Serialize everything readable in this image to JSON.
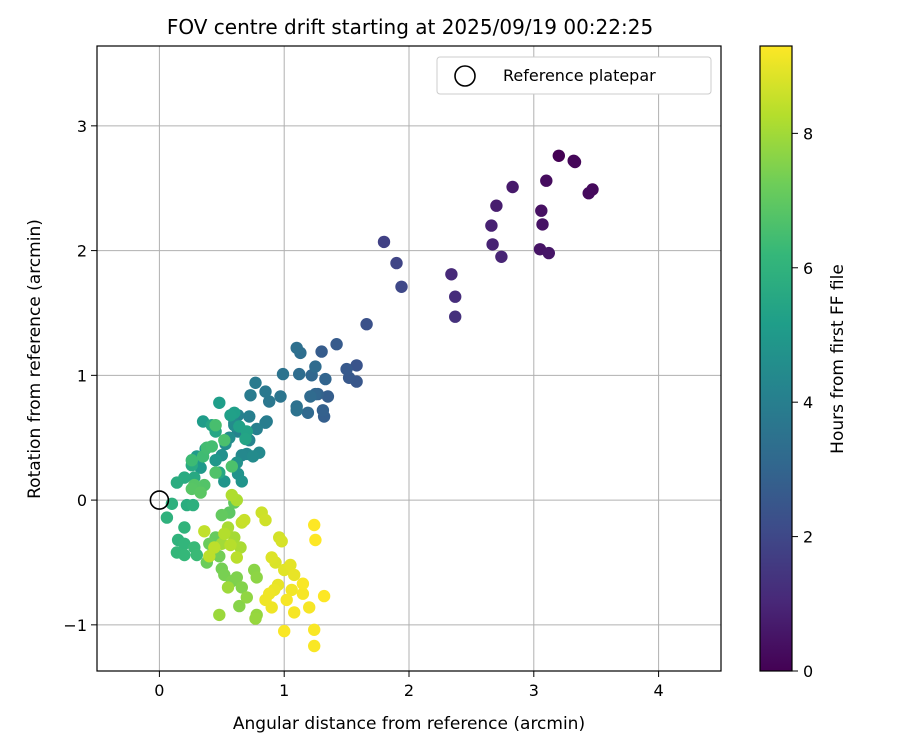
{
  "chart_data": {
    "type": "scatter",
    "title": "FOV centre drift starting at 2025/09/19 00:22:25",
    "xlabel": "Angular distance from reference (arcmin)",
    "ylabel": "Rotation from reference (arcmin)",
    "xlim": [
      -0.5,
      4.5
    ],
    "ylim": [
      -1.37,
      3.64
    ],
    "xticks": [
      0,
      1,
      2,
      3,
      4
    ],
    "yticks": [
      -1,
      0,
      1,
      2,
      3
    ],
    "grid": true,
    "legend": {
      "label": "Reference platepar",
      "position": "top-right"
    },
    "reference_point": {
      "x": 0,
      "y": 0
    },
    "colorbar": {
      "label": "Hours from first FF file",
      "min": 0,
      "max": 9.3,
      "ticks": [
        0,
        2,
        4,
        6,
        8
      ],
      "colormap": "viridis"
    },
    "point_fields": [
      "x",
      "y",
      "hours"
    ],
    "points": [
      [
        3.2,
        2.76,
        0.0
      ],
      [
        3.32,
        2.72,
        0.1
      ],
      [
        3.33,
        2.71,
        0.15
      ],
      [
        3.47,
        2.49,
        0.2
      ],
      [
        3.44,
        2.46,
        0.25
      ],
      [
        3.1,
        2.56,
        0.3
      ],
      [
        3.06,
        2.32,
        0.4
      ],
      [
        3.07,
        2.21,
        0.45
      ],
      [
        3.05,
        2.01,
        0.5
      ],
      [
        3.12,
        1.98,
        0.55
      ],
      [
        2.83,
        2.51,
        0.65
      ],
      [
        2.7,
        2.36,
        0.75
      ],
      [
        2.66,
        2.2,
        0.85
      ],
      [
        2.67,
        2.05,
        0.9
      ],
      [
        2.74,
        1.95,
        0.95
      ],
      [
        2.34,
        1.81,
        1.1
      ],
      [
        2.37,
        1.63,
        1.2
      ],
      [
        2.37,
        1.47,
        1.3
      ],
      [
        1.8,
        2.07,
        1.8
      ],
      [
        1.9,
        1.9,
        1.9
      ],
      [
        1.94,
        1.71,
        2.0
      ],
      [
        1.66,
        1.41,
        2.3
      ],
      [
        1.58,
        1.08,
        2.4
      ],
      [
        1.58,
        0.95,
        2.5
      ],
      [
        1.52,
        0.98,
        2.55
      ],
      [
        1.5,
        1.05,
        2.6
      ],
      [
        1.42,
        1.25,
        2.65
      ],
      [
        1.3,
        1.19,
        2.7
      ],
      [
        1.35,
        0.83,
        2.75
      ],
      [
        1.32,
        0.67,
        2.8
      ],
      [
        1.31,
        0.72,
        2.85
      ],
      [
        1.27,
        0.85,
        2.9
      ],
      [
        1.33,
        0.97,
        3.0
      ],
      [
        1.25,
        0.85,
        3.05
      ],
      [
        1.22,
        1.0,
        3.1
      ],
      [
        1.19,
        0.7,
        3.15
      ],
      [
        1.21,
        0.83,
        3.2
      ],
      [
        1.25,
        1.07,
        3.25
      ],
      [
        1.12,
        1.01,
        3.3
      ],
      [
        1.13,
        1.18,
        3.35
      ],
      [
        1.1,
        1.22,
        3.4
      ],
      [
        1.1,
        0.75,
        3.45
      ],
      [
        1.1,
        0.72,
        3.5
      ],
      [
        0.99,
        1.01,
        3.55
      ],
      [
        0.97,
        0.83,
        3.6
      ],
      [
        0.88,
        0.79,
        3.7
      ],
      [
        0.85,
        0.87,
        3.75
      ],
      [
        0.77,
        0.94,
        3.8
      ],
      [
        0.73,
        0.84,
        3.85
      ],
      [
        0.86,
        0.63,
        3.9
      ],
      [
        0.85,
        0.62,
        3.95
      ],
      [
        0.72,
        0.67,
        4.0
      ],
      [
        0.78,
        0.57,
        4.05
      ],
      [
        0.63,
        0.68,
        4.1
      ],
      [
        0.63,
        0.55,
        4.15
      ],
      [
        0.72,
        0.48,
        4.2
      ],
      [
        0.6,
        0.62,
        4.25
      ],
      [
        0.7,
        0.37,
        4.3
      ],
      [
        0.66,
        0.36,
        4.35
      ],
      [
        0.8,
        0.38,
        4.4
      ],
      [
        0.75,
        0.35,
        4.45
      ],
      [
        0.6,
        0.6,
        4.5
      ],
      [
        0.56,
        0.5,
        4.55
      ],
      [
        0.53,
        0.45,
        4.6
      ],
      [
        0.5,
        0.36,
        4.65
      ],
      [
        0.62,
        0.3,
        4.7
      ],
      [
        0.63,
        0.21,
        4.75
      ],
      [
        0.66,
        0.15,
        4.8
      ],
      [
        0.52,
        0.15,
        4.85
      ],
      [
        0.45,
        0.32,
        4.9
      ],
      [
        0.37,
        0.41,
        4.95
      ],
      [
        0.33,
        0.26,
        5.0
      ],
      [
        0.3,
        0.35,
        5.05
      ],
      [
        0.35,
        0.63,
        5.1
      ],
      [
        0.48,
        0.78,
        5.15
      ],
      [
        0.6,
        0.7,
        5.2
      ],
      [
        0.57,
        0.68,
        5.25
      ],
      [
        0.64,
        0.59,
        5.3
      ],
      [
        0.7,
        0.55,
        5.35
      ],
      [
        0.69,
        0.49,
        5.4
      ],
      [
        0.42,
        0.6,
        5.45
      ],
      [
        0.45,
        0.55,
        5.5
      ],
      [
        0.48,
        0.22,
        5.55
      ],
      [
        0.28,
        0.18,
        5.6
      ],
      [
        0.26,
        0.28,
        5.65
      ],
      [
        0.2,
        0.18,
        5.7
      ],
      [
        0.14,
        0.14,
        5.75
      ],
      [
        0.22,
        -0.04,
        5.8
      ],
      [
        0.27,
        -0.04,
        5.85
      ],
      [
        0.1,
        -0.03,
        5.9
      ],
      [
        0.06,
        -0.14,
        5.95
      ],
      [
        0.15,
        -0.32,
        6.0
      ],
      [
        0.2,
        -0.22,
        6.05
      ],
      [
        0.2,
        -0.35,
        6.1
      ],
      [
        0.14,
        -0.42,
        6.15
      ],
      [
        0.2,
        -0.44,
        6.2
      ],
      [
        0.28,
        -0.38,
        6.25
      ],
      [
        0.3,
        -0.44,
        6.3
      ],
      [
        0.26,
        0.32,
        6.35
      ],
      [
        0.35,
        0.35,
        6.4
      ],
      [
        0.38,
        0.42,
        6.45
      ],
      [
        0.42,
        0.43,
        6.5
      ],
      [
        0.45,
        0.6,
        6.55
      ],
      [
        0.52,
        0.48,
        6.6
      ],
      [
        0.58,
        0.27,
        6.65
      ],
      [
        0.45,
        0.22,
        6.7
      ],
      [
        0.36,
        0.12,
        6.75
      ],
      [
        0.28,
        0.12,
        6.8
      ],
      [
        0.26,
        0.09,
        6.85
      ],
      [
        0.33,
        0.06,
        6.9
      ],
      [
        0.56,
        -0.1,
        6.95
      ],
      [
        0.6,
        -0.02,
        7.0
      ],
      [
        0.5,
        -0.12,
        7.05
      ],
      [
        0.45,
        -0.3,
        7.1
      ],
      [
        0.4,
        -0.35,
        7.15
      ],
      [
        0.38,
        -0.5,
        7.2
      ],
      [
        0.43,
        -0.42,
        7.25
      ],
      [
        0.48,
        -0.45,
        7.3
      ],
      [
        0.5,
        -0.55,
        7.35
      ],
      [
        0.52,
        -0.6,
        7.4
      ],
      [
        0.58,
        -0.65,
        7.45
      ],
      [
        0.62,
        -0.62,
        7.5
      ],
      [
        0.66,
        -0.7,
        7.55
      ],
      [
        0.64,
        -0.85,
        7.6
      ],
      [
        0.76,
        -0.56,
        7.65
      ],
      [
        0.78,
        -0.62,
        7.7
      ],
      [
        0.7,
        -0.78,
        7.75
      ],
      [
        0.78,
        -0.92,
        7.8
      ],
      [
        0.77,
        -0.95,
        7.85
      ],
      [
        0.48,
        -0.92,
        7.9
      ],
      [
        0.55,
        -0.7,
        7.95
      ],
      [
        0.5,
        -0.35,
        8.0
      ],
      [
        0.6,
        -0.3,
        8.05
      ],
      [
        0.65,
        -0.38,
        8.1
      ],
      [
        0.55,
        -0.22,
        8.1
      ],
      [
        0.62,
        0.0,
        8.15
      ],
      [
        0.58,
        0.04,
        8.2
      ],
      [
        0.52,
        -0.27,
        8.25
      ],
      [
        0.57,
        -0.36,
        8.3
      ],
      [
        0.62,
        -0.46,
        8.35
      ],
      [
        0.44,
        -0.38,
        8.4
      ],
      [
        0.4,
        -0.45,
        8.4
      ],
      [
        0.36,
        -0.25,
        8.45
      ],
      [
        0.66,
        -0.18,
        8.5
      ],
      [
        0.68,
        -0.16,
        8.55
      ],
      [
        0.82,
        -0.1,
        8.6
      ],
      [
        0.85,
        -0.16,
        8.65
      ],
      [
        0.96,
        -0.3,
        8.7
      ],
      [
        0.98,
        -0.33,
        8.75
      ],
      [
        0.93,
        -0.5,
        8.8
      ],
      [
        0.9,
        -0.46,
        8.85
      ],
      [
        1.0,
        -0.56,
        8.9
      ],
      [
        1.05,
        -0.52,
        8.95
      ],
      [
        1.08,
        -0.6,
        9.0
      ],
      [
        0.95,
        -0.68,
        9.0
      ],
      [
        0.92,
        -0.72,
        9.05
      ],
      [
        0.88,
        -0.75,
        9.1
      ],
      [
        0.85,
        -0.8,
        9.1
      ],
      [
        0.9,
        -0.86,
        9.1
      ],
      [
        1.06,
        -0.72,
        9.15
      ],
      [
        1.15,
        -0.75,
        9.2
      ],
      [
        1.2,
        -0.86,
        9.2
      ],
      [
        1.08,
        -0.9,
        9.2
      ],
      [
        1.0,
        -1.05,
        9.25
      ],
      [
        1.24,
        -1.04,
        9.25
      ],
      [
        1.24,
        -1.17,
        9.25
      ],
      [
        1.32,
        -0.77,
        9.3
      ],
      [
        1.25,
        -0.32,
        9.3
      ],
      [
        1.24,
        -0.2,
        9.3
      ],
      [
        1.15,
        -0.67,
        9.25
      ],
      [
        1.02,
        -0.8,
        9.2
      ]
    ]
  }
}
